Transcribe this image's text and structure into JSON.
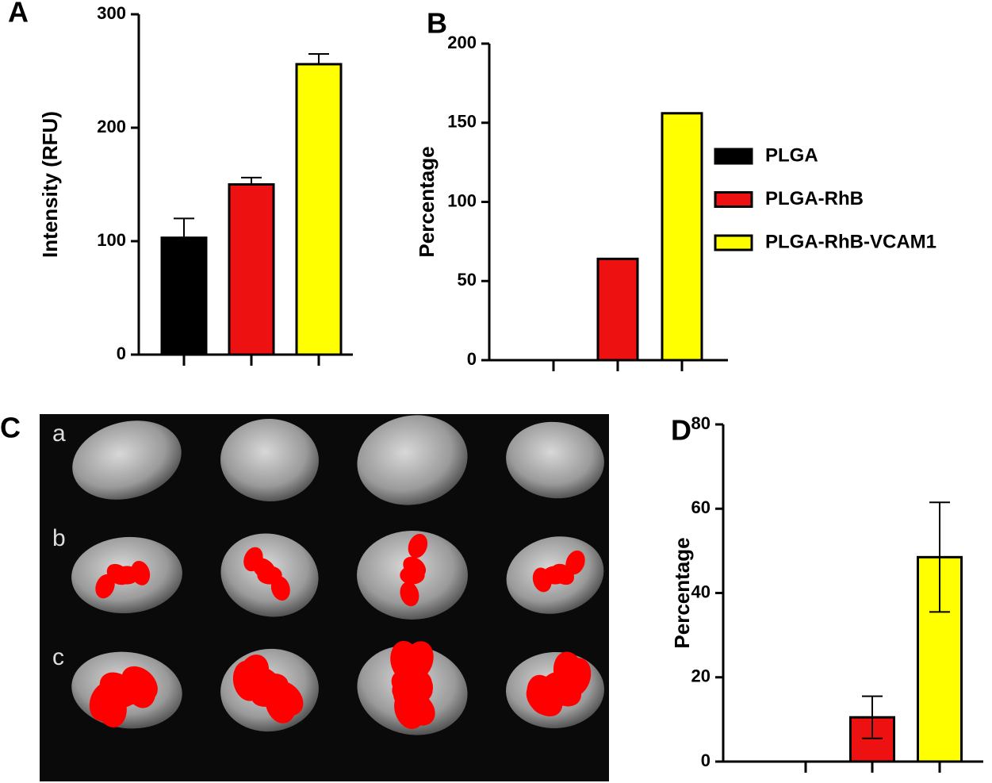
{
  "panel_labels": [
    "A",
    "B",
    "C",
    "D"
  ],
  "image_rows": [
    "a",
    "b",
    "c"
  ],
  "legend": [
    {
      "name": "PLGA",
      "color": "#000000"
    },
    {
      "name": "PLGA-RhB",
      "color": "#ee1111"
    },
    {
      "name": "PLGA-RhB-VCAM1",
      "color": "#ffff00"
    }
  ],
  "chart_data": [
    {
      "type": "bar",
      "y_label": "Intensity (RFU)",
      "categories": [
        null,
        null,
        null
      ],
      "values": [
        103,
        150,
        256
      ],
      "errors": [
        17,
        6,
        9
      ],
      "error_bars": "upper",
      "colors": [
        "#000000",
        "#ee1111",
        "#ffff00"
      ],
      "ylim": [
        0,
        300
      ],
      "yticks": [
        0,
        100,
        200,
        300
      ]
    },
    {
      "type": "bar",
      "y_label": "Percentage",
      "categories": [
        null,
        null,
        null
      ],
      "values": [
        0,
        64,
        156
      ],
      "colors": [
        "#000000",
        "#ee1111",
        "#ffff00"
      ],
      "ylim": [
        0,
        200
      ],
      "yticks": [
        0,
        50,
        100,
        150,
        200
      ]
    },
    {
      "type": "bar",
      "y_label": "Percentage",
      "categories": [
        null,
        null,
        null
      ],
      "values": [
        0,
        10.5,
        48.5
      ],
      "errors": [
        null,
        5,
        13
      ],
      "error_bars": "both",
      "colors": [
        "#000000",
        "#ee1111",
        "#ffff00"
      ],
      "ylim": [
        0,
        80
      ],
      "yticks": [
        0,
        20,
        40,
        60,
        80
      ]
    }
  ]
}
